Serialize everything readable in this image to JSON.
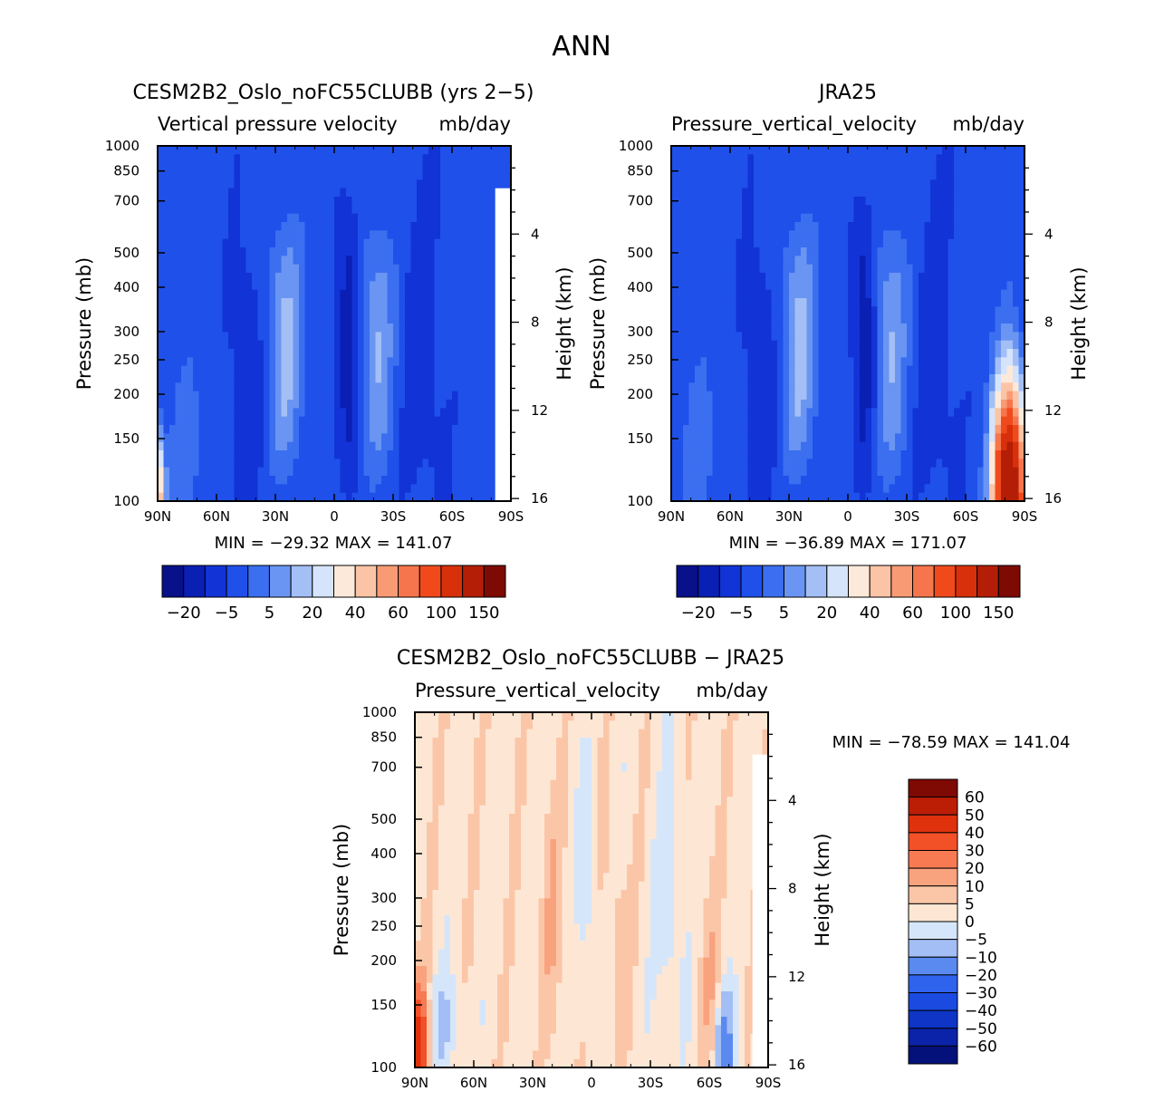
{
  "figure_title": "ANN",
  "colors": {
    "abs_scale": [
      "#08108a",
      "#0a1fb4",
      "#1233d6",
      "#1f50ea",
      "#3b6ff0",
      "#6a95f2",
      "#a4bff6",
      "#d5e4fb",
      "#fde9d9",
      "#fbc4a6",
      "#f89b75",
      "#f6754c",
      "#f04a1c",
      "#d8300a",
      "#b41e06",
      "#7e0a04"
    ],
    "diff_scale": [
      "#04117a",
      "#0a23a8",
      "#0f35c6",
      "#1a4ae0",
      "#2f63ee",
      "#5a89f0",
      "#a3bef5",
      "#d6e6fa",
      "#fde7d4",
      "#fbc6a8",
      "#f9a27e",
      "#f77a53",
      "#f25128",
      "#df320c",
      "#bb1d05",
      "#7f0903"
    ]
  },
  "chart_data": [
    {
      "type": "heatmap",
      "id": "model",
      "title": "CESM2B2_Oslo_noFC55CLUBB (yrs 2-5)",
      "left_string": "Vertical pressure velocity",
      "right_string": "mb/day",
      "ylabel": "Pressure (mb)",
      "ylabel_right": "Height (km)",
      "x_ticks": [
        "90N",
        "60N",
        "30N",
        "0",
        "30S",
        "60S",
        "90S"
      ],
      "y_ticks": [
        "100",
        "150",
        "200",
        "250",
        "300",
        "400",
        "500",
        "700",
        "850",
        "1000"
      ],
      "y_ticks_right": [
        "16",
        "12",
        "8",
        "4"
      ],
      "xlim": [
        90,
        -90
      ],
      "ylim_mb": [
        1000,
        100
      ],
      "min_max": "MIN = -29.32   MAX = 141.07",
      "min": -29.32,
      "max": 141.07,
      "colorbar_labels": [
        "-20",
        "-5",
        "5",
        "20",
        "40",
        "60",
        "100",
        "150"
      ],
      "colorbar_levels": [
        -30,
        -20,
        -10,
        -5,
        0,
        5,
        10,
        20,
        30,
        40,
        50,
        60,
        80,
        100,
        150
      ]
    },
    {
      "type": "heatmap",
      "id": "obs",
      "title": "JRA25",
      "left_string": "Pressure_vertical_velocity",
      "right_string": "mb/day",
      "ylabel": "Pressure (mb)",
      "ylabel_right": "Height (km)",
      "x_ticks": [
        "90N",
        "60N",
        "30N",
        "0",
        "30S",
        "60S",
        "90S"
      ],
      "y_ticks": [
        "100",
        "150",
        "200",
        "250",
        "300",
        "400",
        "500",
        "700",
        "850",
        "1000"
      ],
      "y_ticks_right": [
        "16",
        "12",
        "8",
        "4"
      ],
      "xlim": [
        90,
        -90
      ],
      "ylim_mb": [
        1000,
        100
      ],
      "min_max": "MIN = -36.89   MAX = 171.07",
      "min": -36.89,
      "max": 171.07,
      "colorbar_labels": [
        "-20",
        "-5",
        "5",
        "20",
        "40",
        "60",
        "100",
        "150"
      ],
      "colorbar_levels": [
        -30,
        -20,
        -10,
        -5,
        0,
        5,
        10,
        20,
        30,
        40,
        50,
        60,
        80,
        100,
        150
      ]
    },
    {
      "type": "heatmap",
      "id": "diff",
      "title": "CESM2B2_Oslo_noFC55CLUBB - JRA25",
      "left_string": "Pressure_vertical_velocity",
      "right_string": "mb/day",
      "ylabel": "Pressure (mb)",
      "ylabel_right": "Height (km)",
      "x_ticks": [
        "90N",
        "60N",
        "30N",
        "0",
        "30S",
        "60S",
        "90S"
      ],
      "y_ticks": [
        "100",
        "150",
        "200",
        "250",
        "300",
        "400",
        "500",
        "700",
        "850",
        "1000"
      ],
      "y_ticks_right": [
        "16",
        "12",
        "8",
        "4"
      ],
      "xlim": [
        90,
        -90
      ],
      "ylim_mb": [
        1000,
        100
      ],
      "min_max": "MIN = -78.59   MAX = 141.04",
      "min": -78.59,
      "max": 141.04,
      "colorbar_labels": [
        "60",
        "50",
        "40",
        "30",
        "20",
        "10",
        "5",
        "0",
        "-5",
        "-10",
        "-20",
        "-30",
        "-40",
        "-50",
        "-60"
      ],
      "colorbar_levels": [
        -70,
        -60,
        -50,
        -40,
        -30,
        -20,
        -10,
        -5,
        0,
        5,
        10,
        20,
        30,
        40,
        50,
        60,
        70
      ]
    }
  ]
}
